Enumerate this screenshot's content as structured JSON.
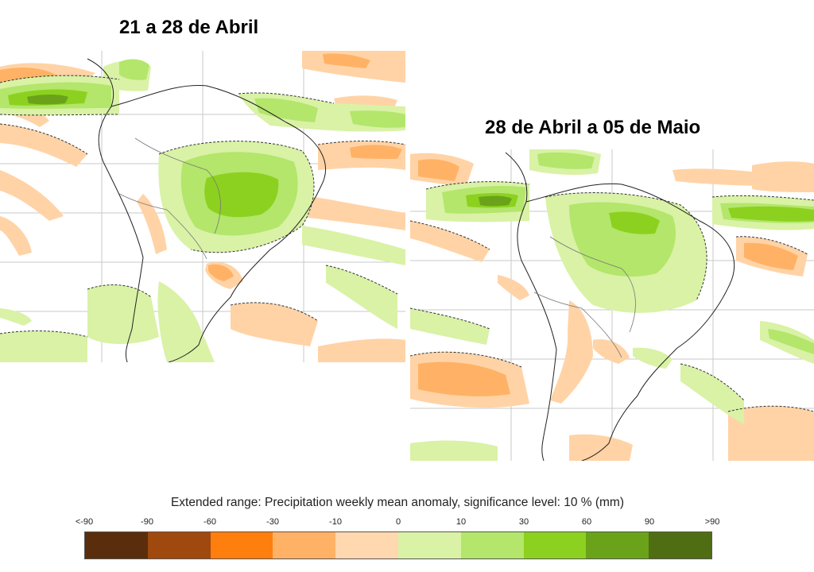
{
  "maps": [
    {
      "title": "21 a 28 de Abril"
    },
    {
      "title": "28 de Abril a 05 de Maio"
    }
  ],
  "legend": {
    "title": "Extended range: Precipitation weekly mean anomaly, significance level: 10 % (mm)",
    "tick_labels": [
      "<-90",
      "-90",
      "-60",
      "-30",
      "-10",
      "0",
      "10",
      "30",
      "60",
      "90",
      ">90"
    ],
    "colors": [
      "#5a2d0c",
      "#a0490e",
      "#ff7f0e",
      "#ffb265",
      "#ffd8b0",
      "#d9f2a6",
      "#b3e66b",
      "#8cd11f",
      "#6aa31a",
      "#4f6e13"
    ]
  }
}
